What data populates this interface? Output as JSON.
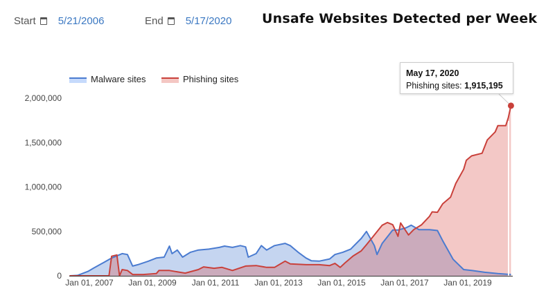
{
  "controls": {
    "start_label": "Start",
    "start_value": "5/21/2006",
    "end_label": "End",
    "end_value": "5/17/2020",
    "calendar_icon": "calendar-icon"
  },
  "tooltip": {
    "date": "May 17, 2020",
    "series": "Phishing sites:",
    "value": "1,915,195"
  },
  "chart_data": {
    "type": "area",
    "title": "Unsafe Websites Detected per Week",
    "xlabel": "",
    "ylabel": "",
    "xlim": [
      "2006-05-21",
      "2020-05-17"
    ],
    "ylim": [
      0,
      2000000
    ],
    "x_ticks": [
      "Jan 01, 2007",
      "Jan 01, 2009",
      "Jan 01, 2011",
      "Jan 01, 2013",
      "Jan 01, 2015",
      "Jan 01, 2017",
      "Jan 01, 2019"
    ],
    "y_ticks": [
      "0",
      "500,000",
      "1,000,000",
      "1,500,000",
      "2,000,000"
    ],
    "legend_position": "top",
    "grid": false,
    "colors": {
      "malware": "#4a7bd0",
      "phishing": "#c9403a"
    },
    "series": [
      {
        "name": "Malware sites",
        "points": [
          [
            "2006-05",
            0
          ],
          [
            "2006-08",
            5000
          ],
          [
            "2006-12",
            50000
          ],
          [
            "2007-02",
            85000
          ],
          [
            "2007-06",
            150000
          ],
          [
            "2007-09",
            200000
          ],
          [
            "2008-01",
            250000
          ],
          [
            "2008-03",
            240000
          ],
          [
            "2008-05",
            110000
          ],
          [
            "2008-07",
            125000
          ],
          [
            "2008-11",
            165000
          ],
          [
            "2009-02",
            200000
          ],
          [
            "2009-05",
            210000
          ],
          [
            "2009-07",
            335000
          ],
          [
            "2009-08",
            250000
          ],
          [
            "2009-10",
            290000
          ],
          [
            "2009-12",
            210000
          ],
          [
            "2010-03",
            265000
          ],
          [
            "2010-06",
            290000
          ],
          [
            "2010-10",
            300000
          ],
          [
            "2011-02",
            320000
          ],
          [
            "2011-04",
            335000
          ],
          [
            "2011-07",
            320000
          ],
          [
            "2011-10",
            340000
          ],
          [
            "2011-12",
            325000
          ],
          [
            "2012-01",
            210000
          ],
          [
            "2012-04",
            250000
          ],
          [
            "2012-06",
            340000
          ],
          [
            "2012-08",
            290000
          ],
          [
            "2012-11",
            340000
          ],
          [
            "2013-03",
            365000
          ],
          [
            "2013-05",
            340000
          ],
          [
            "2013-08",
            265000
          ],
          [
            "2013-11",
            200000
          ],
          [
            "2014-01",
            170000
          ],
          [
            "2014-04",
            165000
          ],
          [
            "2014-08",
            190000
          ],
          [
            "2014-10",
            240000
          ],
          [
            "2015-01",
            265000
          ],
          [
            "2015-04",
            300000
          ],
          [
            "2015-08",
            420000
          ],
          [
            "2015-10",
            500000
          ],
          [
            "2016-01",
            340000
          ],
          [
            "2016-02",
            240000
          ],
          [
            "2016-04",
            365000
          ],
          [
            "2016-08",
            515000
          ],
          [
            "2016-10",
            515000
          ],
          [
            "2017-01",
            540000
          ],
          [
            "2017-03",
            570000
          ],
          [
            "2017-06",
            520000
          ],
          [
            "2017-10",
            520000
          ],
          [
            "2018-01",
            510000
          ],
          [
            "2018-03",
            395000
          ],
          [
            "2018-07",
            185000
          ],
          [
            "2018-11",
            70000
          ],
          [
            "2019-02",
            60000
          ],
          [
            "2019-07",
            40000
          ],
          [
            "2019-12",
            25000
          ],
          [
            "2020-05",
            15000
          ]
        ]
      },
      {
        "name": "Phishing sites",
        "points": [
          [
            "2006-05",
            0
          ],
          [
            "2007-08",
            0
          ],
          [
            "2007-09",
            220000
          ],
          [
            "2007-11",
            235000
          ],
          [
            "2007-12",
            0
          ],
          [
            "2008-01",
            70000
          ],
          [
            "2008-03",
            60000
          ],
          [
            "2008-05",
            15000
          ],
          [
            "2008-09",
            15000
          ],
          [
            "2009-02",
            25000
          ],
          [
            "2009-03",
            60000
          ],
          [
            "2009-07",
            60000
          ],
          [
            "2009-11",
            40000
          ],
          [
            "2010-01",
            30000
          ],
          [
            "2010-06",
            70000
          ],
          [
            "2010-08",
            100000
          ],
          [
            "2010-12",
            85000
          ],
          [
            "2011-03",
            95000
          ],
          [
            "2011-07",
            60000
          ],
          [
            "2011-12",
            110000
          ],
          [
            "2012-04",
            115000
          ],
          [
            "2012-08",
            95000
          ],
          [
            "2012-11",
            95000
          ],
          [
            "2013-03",
            165000
          ],
          [
            "2013-05",
            135000
          ],
          [
            "2013-11",
            125000
          ],
          [
            "2014-04",
            125000
          ],
          [
            "2014-08",
            115000
          ],
          [
            "2014-10",
            140000
          ],
          [
            "2014-12",
            95000
          ],
          [
            "2015-02",
            150000
          ],
          [
            "2015-05",
            225000
          ],
          [
            "2015-08",
            280000
          ],
          [
            "2015-10",
            350000
          ],
          [
            "2016-01",
            460000
          ],
          [
            "2016-04",
            570000
          ],
          [
            "2016-06",
            600000
          ],
          [
            "2016-08",
            575000
          ],
          [
            "2016-10",
            445000
          ],
          [
            "2016-11",
            595000
          ],
          [
            "2017-02",
            460000
          ],
          [
            "2017-04",
            520000
          ],
          [
            "2017-07",
            575000
          ],
          [
            "2017-10",
            670000
          ],
          [
            "2017-11",
            720000
          ],
          [
            "2018-01",
            715000
          ],
          [
            "2018-03",
            810000
          ],
          [
            "2018-06",
            885000
          ],
          [
            "2018-08",
            1040000
          ],
          [
            "2018-11",
            1200000
          ],
          [
            "2018-12",
            1300000
          ],
          [
            "2019-02",
            1350000
          ],
          [
            "2019-06",
            1380000
          ],
          [
            "2019-08",
            1530000
          ],
          [
            "2019-11",
            1620000
          ],
          [
            "2019-12",
            1690000
          ],
          [
            "2020-03",
            1690000
          ],
          [
            "2020-04",
            1780000
          ],
          [
            "2020-05",
            1915195
          ]
        ]
      }
    ]
  }
}
